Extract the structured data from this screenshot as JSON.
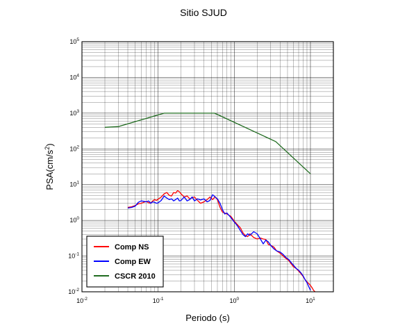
{
  "chart_data": {
    "type": "line",
    "title": "Sitio SJUD",
    "xlabel": "Periodo (s)",
    "ylabel": "PSA(cm/s²)",
    "ylabel_base": "PSA(cm/s",
    "ylabel_sup": "2",
    "ylabel_close": ")",
    "xscale": "log",
    "yscale": "log",
    "xlim": [
      0.01,
      20
    ],
    "ylim": [
      0.01,
      100000
    ],
    "grid": true,
    "legend_position": "bottom-left",
    "x_tick_labels": [
      {
        "value": 0.01,
        "base": "10",
        "exp": "-2"
      },
      {
        "value": 0.1,
        "base": "10",
        "exp": "-1"
      },
      {
        "value": 1,
        "base": "10",
        "exp": "0"
      },
      {
        "value": 10,
        "base": "10",
        "exp": "1"
      }
    ],
    "y_tick_labels": [
      {
        "value": 0.01,
        "base": "10",
        "exp": "-2"
      },
      {
        "value": 0.1,
        "base": "10",
        "exp": "-1"
      },
      {
        "value": 1,
        "base": "10",
        "exp": "0"
      },
      {
        "value": 10,
        "base": "10",
        "exp": "1"
      },
      {
        "value": 100,
        "base": "10",
        "exp": "2"
      },
      {
        "value": 1000,
        "base": "10",
        "exp": "3"
      },
      {
        "value": 10000,
        "base": "10",
        "exp": "4"
      },
      {
        "value": 100000,
        "base": "10",
        "exp": "5"
      }
    ],
    "series": [
      {
        "name": "Comp NS",
        "color": "#ff0000",
        "x": [
          0.04,
          0.045,
          0.05,
          0.055,
          0.06,
          0.065,
          0.07,
          0.075,
          0.08,
          0.085,
          0.09,
          0.095,
          0.1,
          0.11,
          0.12,
          0.13,
          0.14,
          0.15,
          0.16,
          0.17,
          0.18,
          0.19,
          0.2,
          0.22,
          0.24,
          0.26,
          0.28,
          0.3,
          0.33,
          0.36,
          0.4,
          0.44,
          0.48,
          0.52,
          0.56,
          0.6,
          0.65,
          0.7,
          0.75,
          0.8,
          0.9,
          1.0,
          1.1,
          1.2,
          1.3,
          1.4,
          1.5,
          1.6,
          1.8,
          2.0,
          2.2,
          2.4,
          2.6,
          2.8,
          3.0,
          3.3,
          3.6,
          4.0,
          4.4,
          4.8,
          5.2,
          5.6,
          6.0,
          6.5,
          7.0,
          7.5,
          8.0,
          8.5,
          9.0,
          9.5,
          10.0,
          10.5,
          11.0,
          11.5
        ],
        "y": [
          2.3,
          2.4,
          2.6,
          2.9,
          3.0,
          3.2,
          3.4,
          3.1,
          3.0,
          3.5,
          3.8,
          3.6,
          3.9,
          4.5,
          5.5,
          6.0,
          5.0,
          4.8,
          6.0,
          5.8,
          6.8,
          6.3,
          5.5,
          4.5,
          4.8,
          4.0,
          4.3,
          4.5,
          3.6,
          3.0,
          3.3,
          3.8,
          4.5,
          3.8,
          4.6,
          3.8,
          2.3,
          1.7,
          1.6,
          1.5,
          1.3,
          0.95,
          0.75,
          0.62,
          0.45,
          0.37,
          0.35,
          0.42,
          0.33,
          0.3,
          0.32,
          0.3,
          0.29,
          0.21,
          0.2,
          0.18,
          0.14,
          0.12,
          0.1,
          0.085,
          0.075,
          0.06,
          0.05,
          0.045,
          0.038,
          0.032,
          0.027,
          0.022,
          0.019,
          0.017,
          0.015,
          0.013,
          0.011,
          0.01
        ]
      },
      {
        "name": "Comp EW",
        "color": "#0000ff",
        "x": [
          0.04,
          0.045,
          0.05,
          0.055,
          0.06,
          0.065,
          0.07,
          0.075,
          0.08,
          0.085,
          0.09,
          0.095,
          0.1,
          0.11,
          0.12,
          0.13,
          0.14,
          0.15,
          0.16,
          0.17,
          0.18,
          0.19,
          0.2,
          0.22,
          0.24,
          0.26,
          0.28,
          0.3,
          0.33,
          0.36,
          0.4,
          0.44,
          0.48,
          0.52,
          0.56,
          0.6,
          0.65,
          0.7,
          0.75,
          0.8,
          0.9,
          1.0,
          1.1,
          1.2,
          1.3,
          1.4,
          1.5,
          1.6,
          1.8,
          2.0,
          2.2,
          2.4,
          2.6,
          2.8,
          3.0,
          3.3,
          3.6,
          4.0,
          4.4,
          4.8,
          5.2,
          5.6,
          6.0,
          6.5,
          7.0,
          7.5,
          8.0,
          8.5,
          9.0,
          9.5,
          10.0
        ],
        "y": [
          2.2,
          2.3,
          2.5,
          3.2,
          3.5,
          3.4,
          3.3,
          3.5,
          3.0,
          3.3,
          3.2,
          3.0,
          3.1,
          3.6,
          4.8,
          4.2,
          3.8,
          4.0,
          3.5,
          3.8,
          4.2,
          3.5,
          3.6,
          4.5,
          3.5,
          3.8,
          4.5,
          3.5,
          4.0,
          3.7,
          4.0,
          3.3,
          3.6,
          5.2,
          4.5,
          4.0,
          3.0,
          2.0,
          1.5,
          1.6,
          1.2,
          0.9,
          0.7,
          0.52,
          0.4,
          0.35,
          0.42,
          0.38,
          0.48,
          0.42,
          0.3,
          0.22,
          0.28,
          0.25,
          0.2,
          0.16,
          0.14,
          0.13,
          0.11,
          0.09,
          0.08,
          0.065,
          0.055,
          0.045,
          0.04,
          0.034,
          0.028,
          0.022,
          0.018,
          0.014,
          0.011
        ]
      },
      {
        "name": "CSCR 2010",
        "color": "#1f6b1f",
        "x": [
          0.02,
          0.03,
          0.12,
          0.55,
          3.5,
          10.0
        ],
        "y": [
          400,
          420,
          1000,
          1000,
          160,
          20
        ]
      }
    ]
  }
}
